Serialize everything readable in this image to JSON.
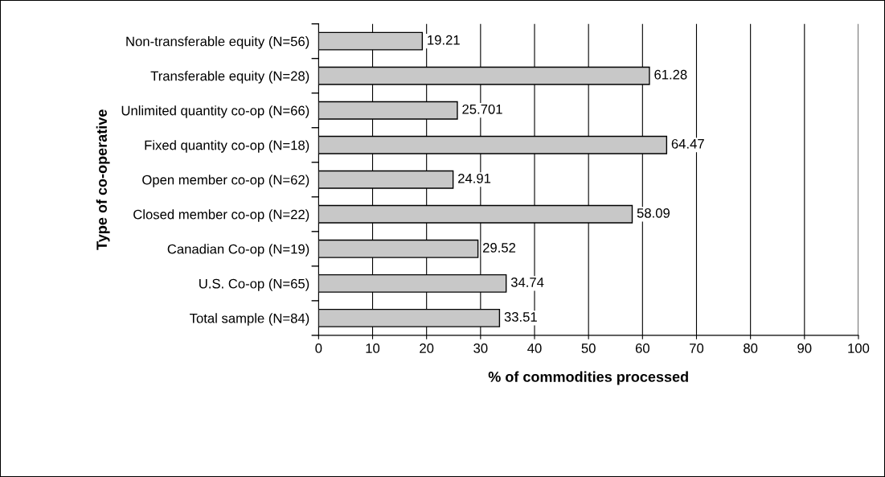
{
  "chart_data": {
    "type": "bar",
    "orientation": "horizontal",
    "ylabel": "Type of co-operative",
    "xlabel": "% of commodities processed",
    "categories": [
      "Non-transferable equity (N=56)",
      "Transferable equity (N=28)",
      "Unlimited quantity co-op (N=66)",
      "Fixed quantity co-op (N=18)",
      "Open member co-op (N=62)",
      "Closed member co-op (N=22)",
      "Canadian Co-op (N=19)",
      "U.S. Co-op (N=65)",
      "Total sample (N=84)"
    ],
    "values": [
      19.21,
      61.28,
      25.701,
      64.47,
      24.91,
      58.09,
      29.52,
      34.74,
      33.51
    ],
    "color": "#c8c8c8",
    "xlim": [
      0,
      100
    ],
    "xticks": [
      0,
      10,
      20,
      30,
      40,
      50,
      60,
      70,
      80,
      90,
      100
    ],
    "grid": "x",
    "data_labels": true,
    "legend": false
  }
}
